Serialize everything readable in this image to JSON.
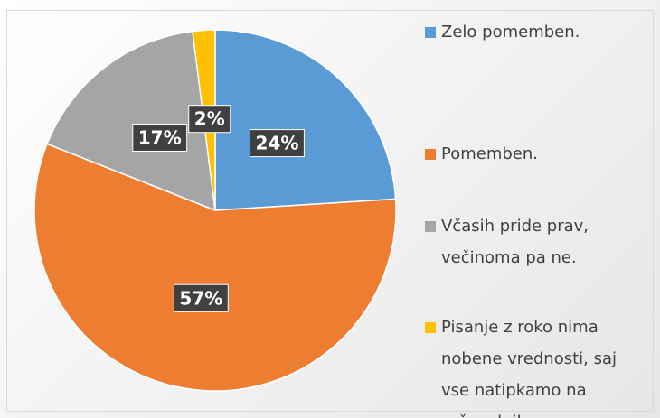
{
  "chart_data": {
    "type": "pie",
    "categories": [
      "Zelo pomemben.",
      "Pomemben.",
      "Včasih pride prav, večinoma pa ne.",
      "Pisanje z roko nima nobene vrednosti, saj vse natipkamo na računalnik."
    ],
    "values": [
      24,
      57,
      17,
      2
    ],
    "value_labels": [
      "24%",
      "57%",
      "17%",
      "2%"
    ],
    "colors": [
      "#5b9bd5",
      "#ed7d31",
      "#a5a5a5",
      "#ffc000"
    ]
  }
}
